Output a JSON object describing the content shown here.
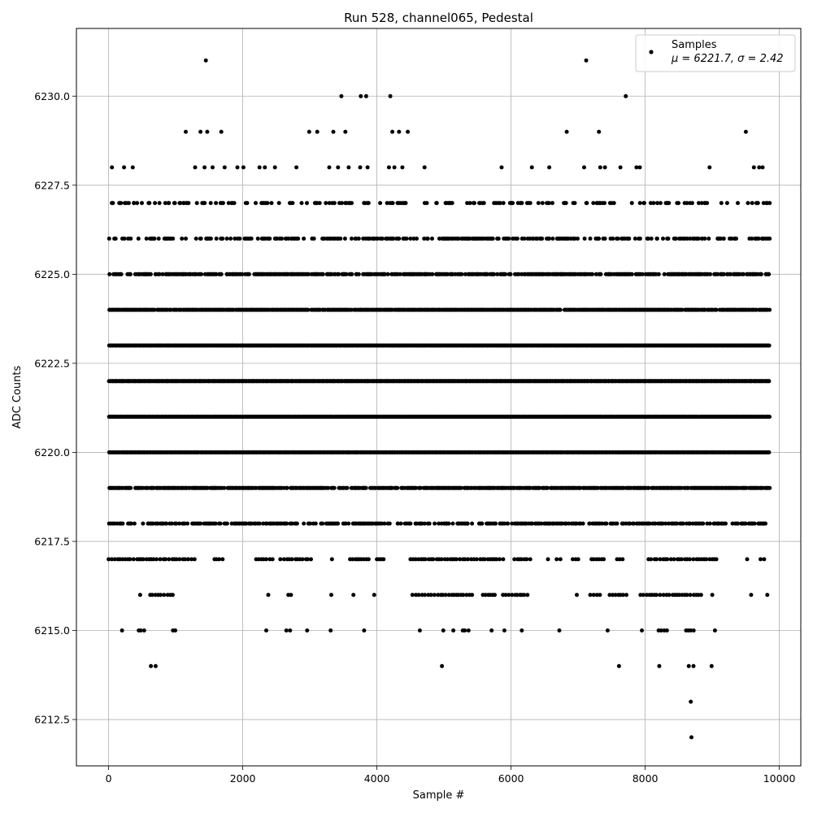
{
  "chart_data": {
    "type": "scatter",
    "title": "Run 528, channel065, Pedestal",
    "xlabel": "Sample #",
    "ylabel": "ADC Counts",
    "xlim": [
      -480,
      10320
    ],
    "ylim": [
      6211.2,
      6231.9
    ],
    "x_ticks": [
      0,
      2000,
      4000,
      6000,
      8000,
      10000
    ],
    "x_tick_labels": [
      "0",
      "2000",
      "4000",
      "6000",
      "8000",
      "10000"
    ],
    "y_ticks": [
      6212.5,
      6215.0,
      6217.5,
      6220.0,
      6222.5,
      6225.0,
      6227.5,
      6230.0
    ],
    "y_tick_labels": [
      "6212.5",
      "6215.0",
      "6217.5",
      "6220.0",
      "6222.5",
      "6225.0",
      "6227.5",
      "6230.0"
    ],
    "grid": true,
    "legend": {
      "position": "top-right",
      "entries": [
        {
          "label": "Samples",
          "sublabel": "μ = 6221.7, σ = 2.42",
          "color": "#000000"
        }
      ]
    },
    "series": [
      {
        "name": "Samples",
        "color": "#000000",
        "marker": "circle",
        "n_samples": 9850,
        "mean": 6221.7,
        "sigma": 2.42,
        "levels": [
          6212,
          6213,
          6214,
          6215,
          6216,
          6217,
          6218,
          6219,
          6220,
          6221,
          6222,
          6223,
          6224,
          6225,
          6226,
          6227,
          6228,
          6229,
          6230,
          6231
        ],
        "rare_points": [
          [
            1450,
            6231
          ],
          [
            7120,
            6231
          ],
          [
            3470,
            6230
          ],
          [
            3760,
            6230
          ],
          [
            3840,
            6230
          ],
          [
            4200,
            6230
          ],
          [
            7710,
            6230
          ],
          [
            1150,
            6229
          ],
          [
            1370,
            6229
          ],
          [
            1470,
            6229
          ],
          [
            1680,
            6229
          ],
          [
            2990,
            6229
          ],
          [
            3110,
            6229
          ],
          [
            3350,
            6229
          ],
          [
            3530,
            6229
          ],
          [
            4230,
            6229
          ],
          [
            4330,
            6229
          ],
          [
            4460,
            6229
          ],
          [
            6830,
            6229
          ],
          [
            7310,
            6229
          ],
          [
            9500,
            6229
          ],
          [
            50,
            6228
          ],
          [
            230,
            6228
          ],
          [
            360,
            6228
          ],
          [
            1290,
            6228
          ],
          [
            1430,
            6228
          ],
          [
            1550,
            6228
          ],
          [
            1730,
            6228
          ],
          [
            1920,
            6228
          ],
          [
            2010,
            6228
          ],
          [
            2250,
            6228
          ],
          [
            2330,
            6228
          ],
          [
            2480,
            6228
          ],
          [
            2800,
            6228
          ],
          [
            3290,
            6228
          ],
          [
            3420,
            6228
          ],
          [
            3580,
            6228
          ],
          [
            3750,
            6228
          ],
          [
            3860,
            6228
          ],
          [
            4180,
            6228
          ],
          [
            4260,
            6228
          ],
          [
            4380,
            6228
          ],
          [
            4710,
            6228
          ],
          [
            5860,
            6228
          ],
          [
            6310,
            6228
          ],
          [
            6570,
            6228
          ],
          [
            7090,
            6228
          ],
          [
            7330,
            6228
          ],
          [
            7400,
            6228
          ],
          [
            7630,
            6228
          ],
          [
            7870,
            6228
          ],
          [
            7920,
            6228
          ],
          [
            8960,
            6228
          ],
          [
            9620,
            6228
          ],
          [
            9700,
            6228
          ],
          [
            9750,
            6228
          ],
          [
            630,
            6214
          ],
          [
            700,
            6214
          ],
          [
            4970,
            6214
          ],
          [
            7610,
            6214
          ],
          [
            8210,
            6214
          ],
          [
            8650,
            6214
          ],
          [
            8720,
            6214
          ],
          [
            8990,
            6214
          ],
          [
            8680,
            6213
          ],
          [
            8690,
            6212
          ]
        ],
        "level_gaps": [
          {
            "y": 6217,
            "x_ranges": [
              [
                0,
                1300
              ],
              [
                1580,
                1720
              ],
              [
                2200,
                2450
              ],
              [
                2560,
                3060
              ],
              [
                3330,
                3330
              ],
              [
                3600,
                3900
              ],
              [
                4000,
                4100
              ],
              [
                4500,
                5900
              ],
              [
                6050,
                6300
              ],
              [
                6550,
                6550
              ],
              [
                6680,
                6760
              ],
              [
                6920,
                7030
              ],
              [
                7200,
                7400
              ],
              [
                7580,
                7680
              ],
              [
                8050,
                9100
              ],
              [
                9520,
                9520
              ],
              [
                9720,
                9800
              ]
            ]
          },
          {
            "y": 6216,
            "x_ranges": [
              [
                470,
                470
              ],
              [
                620,
                960
              ],
              [
                2380,
                2380
              ],
              [
                2680,
                2730
              ],
              [
                3320,
                3320
              ],
              [
                3650,
                3650
              ],
              [
                3960,
                3960
              ],
              [
                4530,
                5450
              ],
              [
                5580,
                5760
              ],
              [
                5880,
                6250
              ],
              [
                6980,
                6980
              ],
              [
                7180,
                7350
              ],
              [
                7470,
                7750
              ],
              [
                7930,
                8850
              ],
              [
                9000,
                9000
              ],
              [
                9580,
                9580
              ],
              [
                9820,
                9820
              ]
            ]
          },
          {
            "y": 6215,
            "x_ranges": [
              [
                200,
                200
              ],
              [
                450,
                550
              ],
              [
                960,
                1000
              ],
              [
                2350,
                2350
              ],
              [
                2650,
                2720
              ],
              [
                2960,
                2960
              ],
              [
                3310,
                3310
              ],
              [
                3810,
                3810
              ],
              [
                4640,
                4640
              ],
              [
                4990,
                5030
              ],
              [
                5140,
                5140
              ],
              [
                5280,
                5380
              ],
              [
                5710,
                5710
              ],
              [
                5900,
                5900
              ],
              [
                6160,
                6200
              ],
              [
                6720,
                6720
              ],
              [
                7440,
                7440
              ],
              [
                7950,
                7950
              ],
              [
                8200,
                8350
              ],
              [
                8610,
                8750
              ],
              [
                9040,
                9040
              ]
            ]
          }
        ]
      }
    ]
  }
}
